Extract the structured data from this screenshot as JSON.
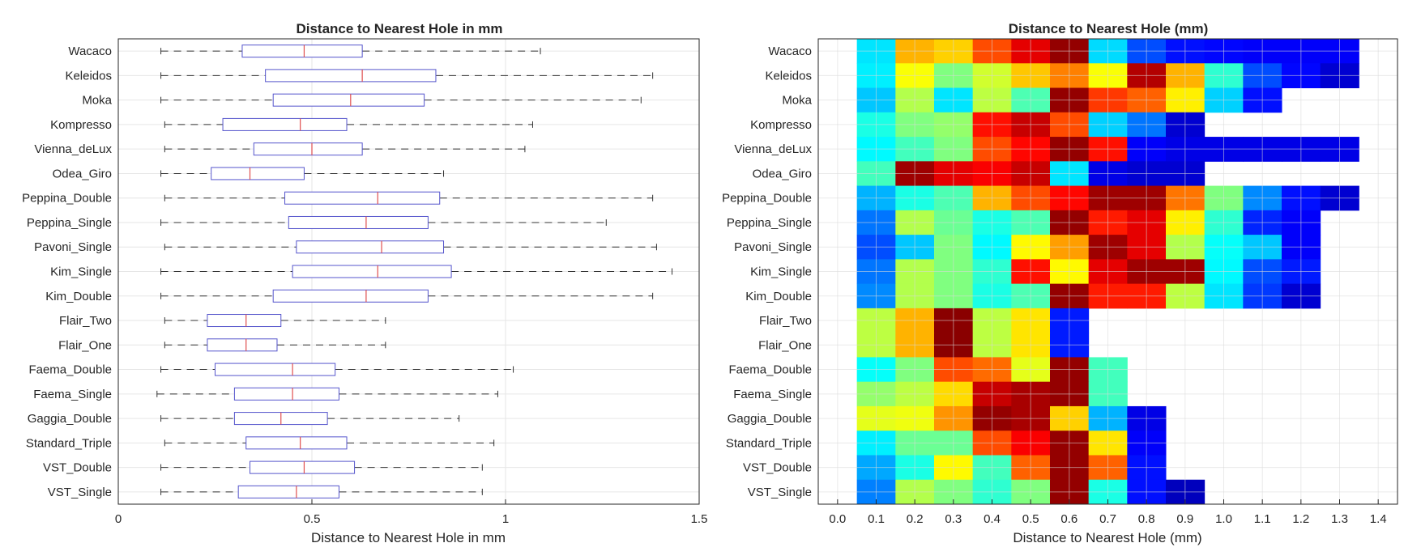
{
  "chart_data": [
    {
      "type": "boxplot",
      "title": "Distance to Nearest Hole in mm",
      "xlabel": "Distance to Nearest Hole in mm",
      "ylabel": "",
      "xlim": [
        0,
        1.5
      ],
      "xticks": [
        0,
        0.5,
        1,
        1.5
      ],
      "xtick_labels": [
        "0",
        "0.5",
        "1",
        "1.5"
      ],
      "grid": true,
      "categories": [
        "Wacaco",
        "Keleidos",
        "Moka",
        "Kompresso",
        "Vienna_deLux",
        "Odea_Giro",
        "Peppina_Double",
        "Peppina_Single",
        "Pavoni_Single",
        "Kim_Single",
        "Kim_Double",
        "Flair_Two",
        "Flair_One",
        "Faema_Double",
        "Faema_Single",
        "Gaggia_Double",
        "Standard_Triple",
        "VST_Double",
        "VST_Single"
      ],
      "boxes": [
        {
          "min": 0.11,
          "q1": 0.32,
          "median": 0.48,
          "q3": 0.63,
          "max": 1.09
        },
        {
          "min": 0.11,
          "q1": 0.38,
          "median": 0.63,
          "q3": 0.82,
          "max": 1.38
        },
        {
          "min": 0.11,
          "q1": 0.4,
          "median": 0.6,
          "q3": 0.79,
          "max": 1.35
        },
        {
          "min": 0.12,
          "q1": 0.27,
          "median": 0.47,
          "q3": 0.59,
          "max": 1.07
        },
        {
          "min": 0.12,
          "q1": 0.35,
          "median": 0.5,
          "q3": 0.63,
          "max": 1.05
        },
        {
          "min": 0.11,
          "q1": 0.24,
          "median": 0.34,
          "q3": 0.48,
          "max": 0.84
        },
        {
          "min": 0.12,
          "q1": 0.43,
          "median": 0.67,
          "q3": 0.83,
          "max": 1.38
        },
        {
          "min": 0.11,
          "q1": 0.44,
          "median": 0.64,
          "q3": 0.8,
          "max": 1.26
        },
        {
          "min": 0.12,
          "q1": 0.46,
          "median": 0.68,
          "q3": 0.84,
          "max": 1.39
        },
        {
          "min": 0.11,
          "q1": 0.45,
          "median": 0.67,
          "q3": 0.86,
          "max": 1.43
        },
        {
          "min": 0.11,
          "q1": 0.4,
          "median": 0.64,
          "q3": 0.8,
          "max": 1.38
        },
        {
          "min": 0.12,
          "q1": 0.23,
          "median": 0.33,
          "q3": 0.42,
          "max": 0.69
        },
        {
          "min": 0.12,
          "q1": 0.23,
          "median": 0.33,
          "q3": 0.41,
          "max": 0.69
        },
        {
          "min": 0.11,
          "q1": 0.25,
          "median": 0.45,
          "q3": 0.56,
          "max": 1.02
        },
        {
          "min": 0.1,
          "q1": 0.3,
          "median": 0.45,
          "q3": 0.57,
          "max": 0.98
        },
        {
          "min": 0.11,
          "q1": 0.3,
          "median": 0.42,
          "q3": 0.54,
          "max": 0.88
        },
        {
          "min": 0.12,
          "q1": 0.33,
          "median": 0.47,
          "q3": 0.59,
          "max": 0.97
        },
        {
          "min": 0.11,
          "q1": 0.34,
          "median": 0.48,
          "q3": 0.61,
          "max": 0.94
        },
        {
          "min": 0.11,
          "q1": 0.31,
          "median": 0.46,
          "q3": 0.57,
          "max": 0.94
        }
      ],
      "colors": {
        "box": "#5555cc",
        "median": "#e05050",
        "whisker": "#333333",
        "grid": "#e6e6e6",
        "axis": "#262626"
      }
    },
    {
      "type": "heatmap",
      "title": "Distance to Nearest Hole (mm)",
      "xlabel": "Distance to Nearest Hole (mm)",
      "ylabel": "",
      "xlim": [
        -0.05,
        1.45
      ],
      "bin_centers": [
        0.1,
        0.2,
        0.3,
        0.4,
        0.5,
        0.6,
        0.7,
        0.8,
        0.9,
        1.0,
        1.1,
        1.2,
        1.3
      ],
      "xticks": [
        0.0,
        0.1,
        0.2,
        0.3,
        0.4,
        0.5,
        0.6,
        0.7,
        0.8,
        0.9,
        1.0,
        1.1,
        1.2,
        1.3,
        1.4
      ],
      "xtick_labels": [
        "0.0",
        "0.1",
        "0.2",
        "0.3",
        "0.4",
        "0.5",
        "0.6",
        "0.7",
        "0.8",
        "0.9",
        "1.0",
        "1.1",
        "1.2",
        "1.3",
        "1.4"
      ],
      "grid": true,
      "colormap": "jet",
      "value_scale": [
        0,
        1
      ],
      "categories": [
        "Wacaco",
        "Keleidos",
        "Moka",
        "Kompresso",
        "Vienna_deLux",
        "Odea_Giro",
        "Peppina_Double",
        "Peppina_Single",
        "Pavoni_Single",
        "Kim_Single",
        "Kim_Double",
        "Flair_Two",
        "Flair_One",
        "Faema_Double",
        "Faema_Single",
        "Gaggia_Double",
        "Standard_Triple",
        "VST_Double",
        "VST_Single"
      ],
      "values": [
        [
          0.35,
          0.7,
          0.67,
          0.8,
          0.9,
          0.98,
          0.34,
          0.2,
          0.14,
          0.13,
          0.12,
          0.12,
          0.12
        ],
        [
          0.36,
          0.62,
          0.5,
          0.58,
          0.68,
          0.75,
          0.62,
          0.95,
          0.7,
          0.42,
          0.2,
          0.13,
          0.08
        ],
        [
          0.32,
          0.55,
          0.35,
          0.56,
          0.45,
          0.98,
          0.82,
          0.78,
          0.64,
          0.33,
          0.14,
          null,
          null
        ],
        [
          0.4,
          0.5,
          0.52,
          0.86,
          0.93,
          0.8,
          0.33,
          0.24,
          0.08,
          null,
          null,
          null,
          null
        ],
        [
          0.37,
          0.44,
          0.5,
          0.8,
          0.87,
          0.98,
          0.86,
          0.12,
          0.1,
          0.1,
          0.1,
          0.1,
          0.1
        ],
        [
          0.44,
          0.97,
          0.9,
          0.88,
          0.93,
          0.35,
          0.1,
          0.08,
          0.08,
          null,
          null,
          null,
          null
        ],
        [
          0.3,
          0.4,
          0.45,
          0.7,
          0.8,
          0.87,
          0.97,
          0.97,
          0.76,
          0.5,
          0.26,
          0.14,
          0.08
        ],
        [
          0.24,
          0.55,
          0.48,
          0.4,
          0.45,
          0.98,
          0.85,
          0.9,
          0.64,
          0.42,
          0.16,
          0.12,
          null
        ],
        [
          0.2,
          0.32,
          0.5,
          0.37,
          0.63,
          0.72,
          0.97,
          0.9,
          0.55,
          0.38,
          0.32,
          0.12,
          null
        ],
        [
          0.24,
          0.55,
          0.5,
          0.42,
          0.86,
          0.63,
          0.9,
          0.97,
          0.97,
          0.37,
          0.2,
          0.15,
          null
        ],
        [
          0.26,
          0.55,
          0.5,
          0.4,
          0.45,
          0.98,
          0.85,
          0.85,
          0.56,
          0.35,
          0.18,
          0.08,
          null
        ],
        [
          0.56,
          0.7,
          0.99,
          0.56,
          0.65,
          0.15,
          null,
          null,
          null,
          null,
          null,
          null,
          null
        ],
        [
          0.56,
          0.7,
          0.99,
          0.56,
          0.65,
          0.15,
          null,
          null,
          null,
          null,
          null,
          null,
          null
        ],
        [
          0.38,
          0.5,
          0.8,
          0.77,
          0.6,
          0.98,
          0.44,
          null,
          null,
          null,
          null,
          null,
          null
        ],
        [
          0.52,
          0.56,
          0.66,
          0.93,
          0.96,
          0.98,
          0.44,
          null,
          null,
          null,
          null,
          null,
          null
        ],
        [
          0.6,
          0.61,
          0.73,
          0.98,
          0.96,
          0.67,
          0.3,
          0.1,
          null,
          null,
          null,
          null,
          null
        ],
        [
          0.36,
          0.48,
          0.48,
          0.8,
          0.88,
          0.98,
          0.65,
          0.12,
          null,
          null,
          null,
          null,
          null
        ],
        [
          0.29,
          0.4,
          0.63,
          0.44,
          0.78,
          0.98,
          0.78,
          0.14,
          null,
          null,
          null,
          null,
          null
        ],
        [
          0.25,
          0.55,
          0.5,
          0.42,
          0.5,
          0.98,
          0.4,
          0.14,
          0.06,
          null,
          null,
          null,
          null
        ]
      ],
      "colors": {
        "grid": "#d9d9d9",
        "axis": "#262626"
      }
    }
  ]
}
